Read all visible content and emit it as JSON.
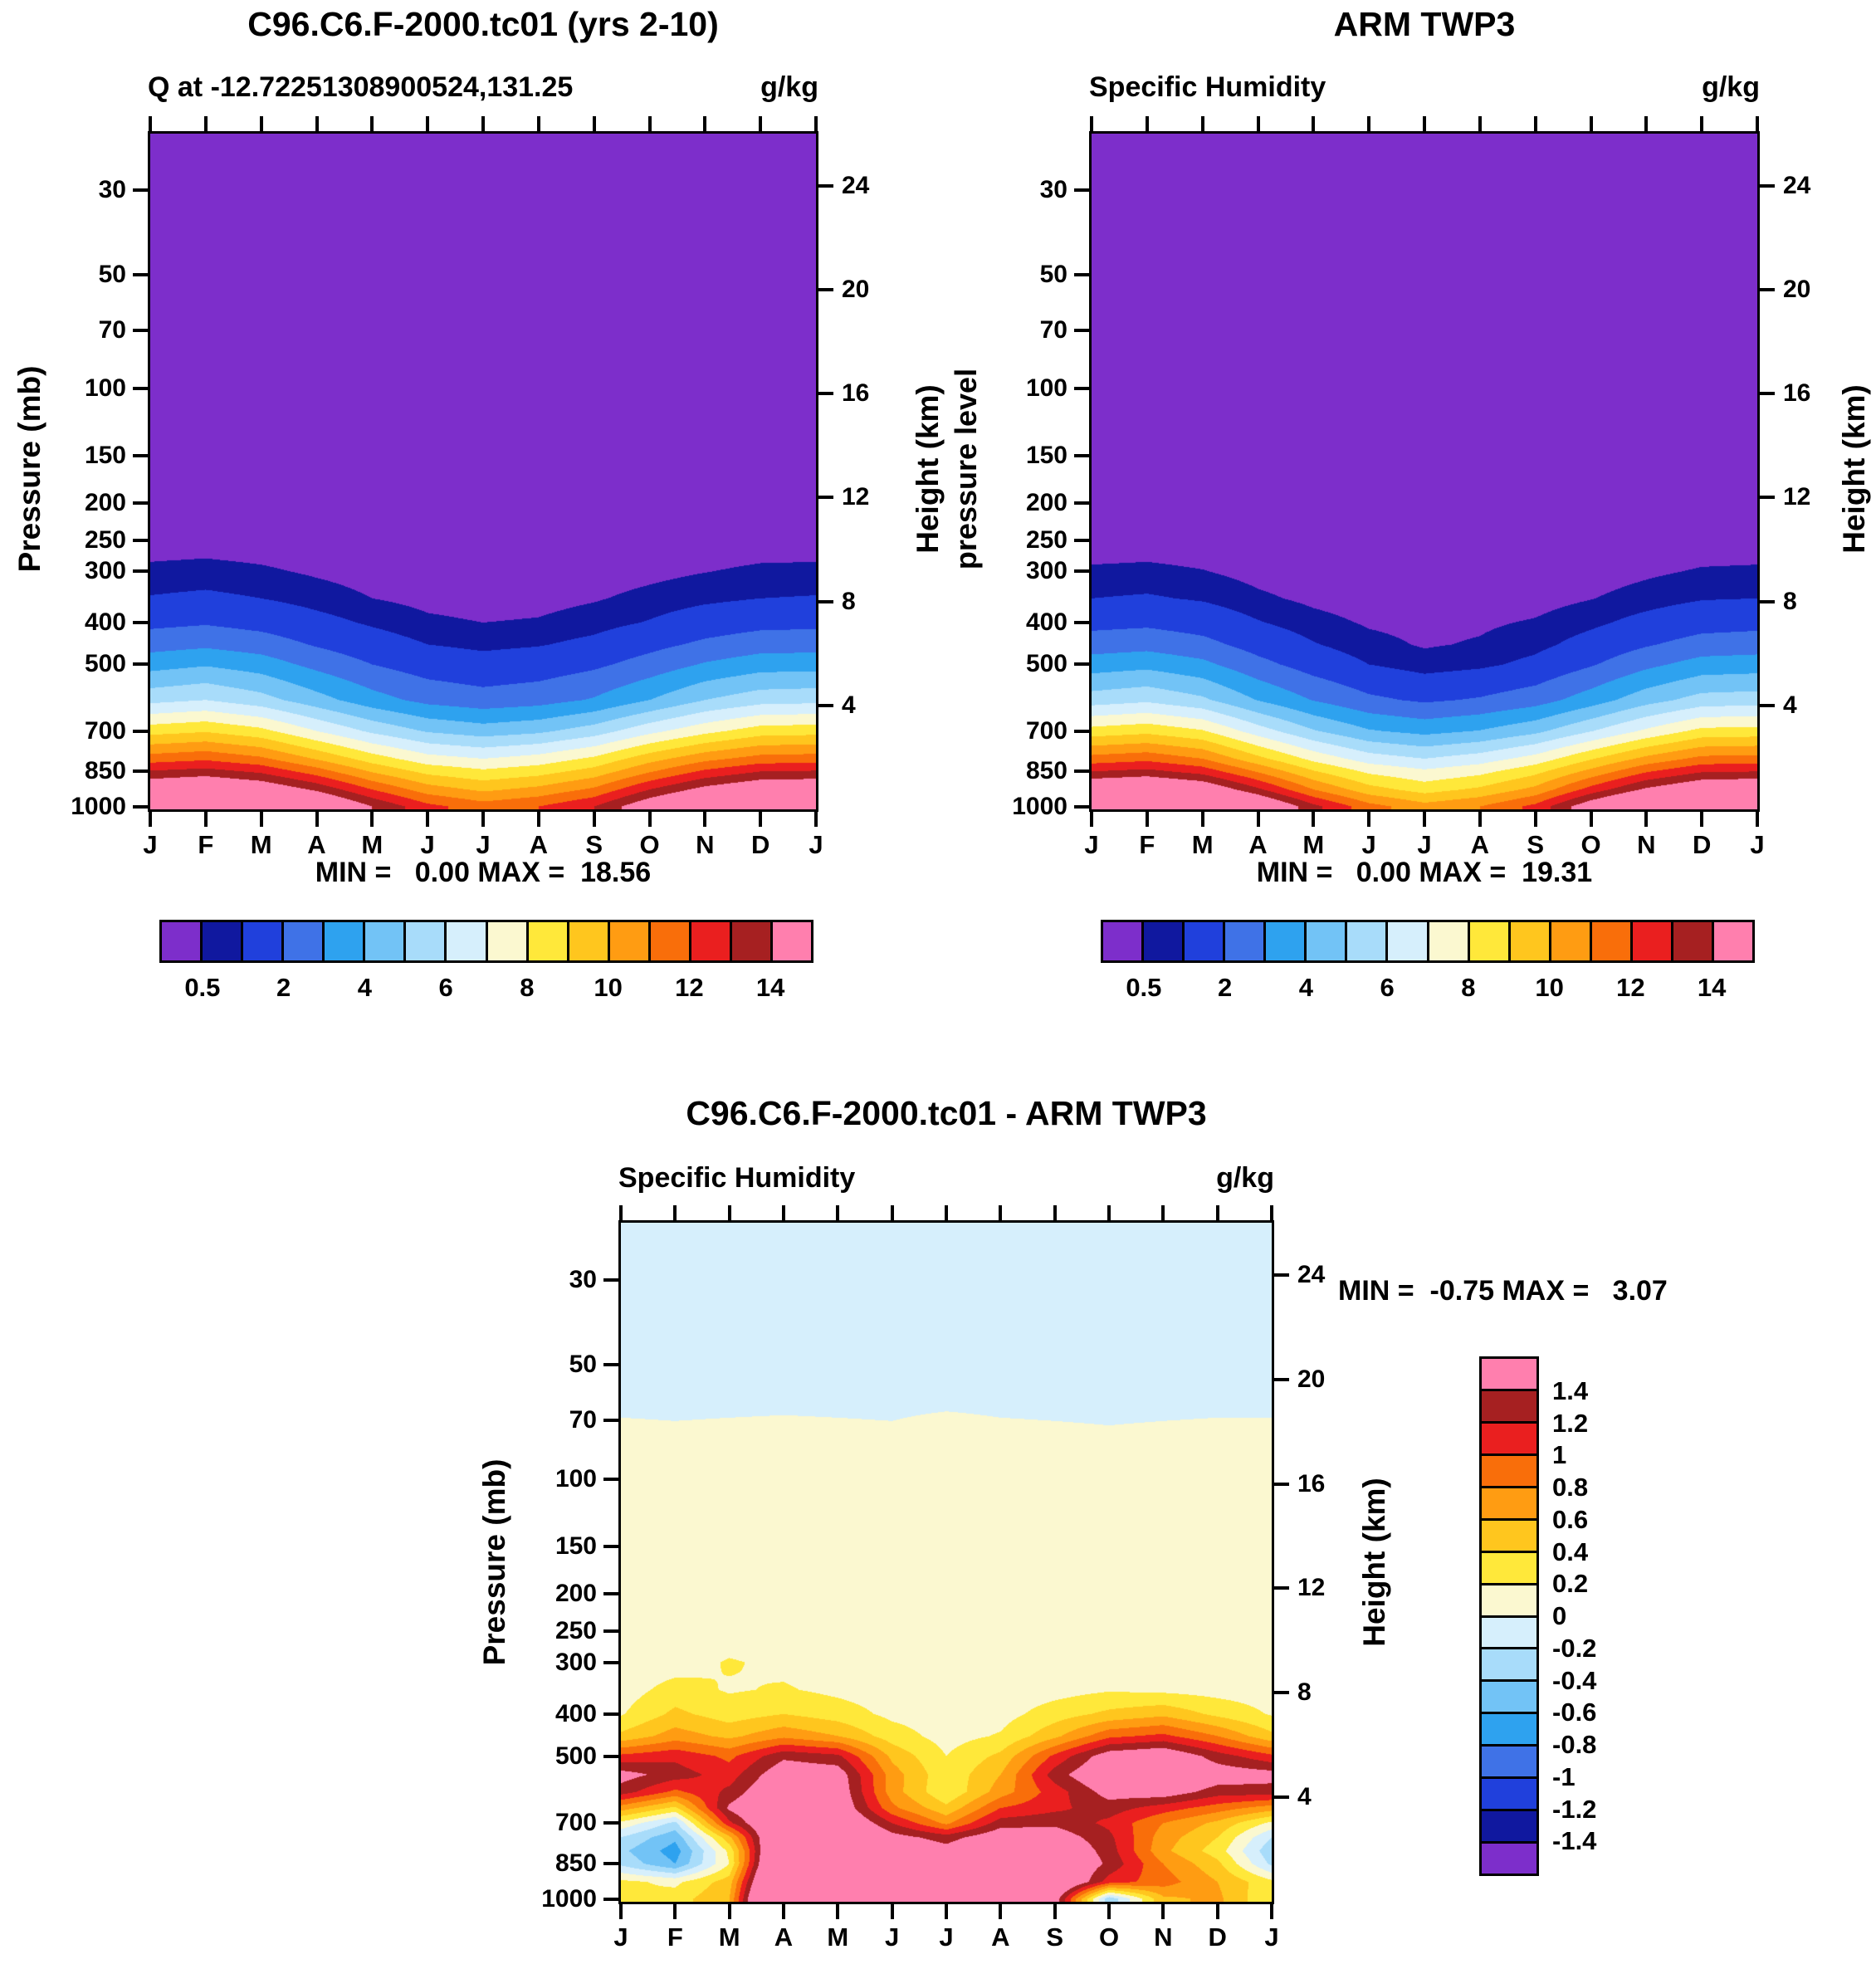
{
  "panels": {
    "model": {
      "title": "C96.C6.F-2000.tc01 (yrs 2-10)",
      "subtitle_left": "Q at -12.72251308900524,131.25",
      "units": "g/kg",
      "stats": "MIN =   0.00 MAX =  18.56"
    },
    "obs": {
      "title": "ARM TWP3",
      "subtitle_left": "Specific Humidity",
      "units": "g/kg",
      "stats": "MIN =   0.00 MAX =  19.31"
    },
    "diff": {
      "title": "C96.C6.F-2000.tc01 - ARM TWP3",
      "subtitle_left": "Specific Humidity",
      "units": "g/kg",
      "stats": "MIN =  -0.75 MAX =   3.07"
    }
  },
  "axes": {
    "pressure_label": "Pressure (mb)",
    "obs_left_label": "pressure level",
    "height_label": "Height (km)",
    "pressure_ticks": [
      30,
      50,
      70,
      100,
      150,
      200,
      250,
      300,
      400,
      500,
      700,
      850,
      1000
    ],
    "height_ticks": [
      24,
      20,
      16,
      12,
      8,
      4
    ],
    "month_labels": [
      "J",
      "F",
      "M",
      "A",
      "M",
      "J",
      "J",
      "A",
      "S",
      "O",
      "N",
      "D",
      "J"
    ]
  },
  "colorbars": {
    "palette": [
      "#7d2ecb",
      "#10189f",
      "#2040dc",
      "#3f72e7",
      "#2ea2ef",
      "#72c3f6",
      "#a8dcfa",
      "#d6effc",
      "#fbf8d0",
      "#ffe83a",
      "#ffc61e",
      "#ff9c12",
      "#f96e0a",
      "#ea1f1f",
      "#a62021",
      "#ff7fae"
    ],
    "humidity_labels": [
      "0.5",
      "2",
      "4",
      "6",
      "8",
      "10",
      "12",
      "14"
    ],
    "diff_labels": [
      "1.4",
      "1.2",
      "1",
      "0.8",
      "0.6",
      "0.4",
      "0.2",
      "0",
      "-0.2",
      "-0.4",
      "-0.6",
      "-0.8",
      "-1",
      "-1.2",
      "-1.4"
    ]
  },
  "chart_data": [
    {
      "type": "heatmap",
      "name": "model-specific-humidity",
      "title": "C96.C6.F-2000.tc01 (yrs 2-10)",
      "subtitle": "Q at -12.72251308900524,131.25",
      "units": "g/kg",
      "min": 0.0,
      "max": 18.56,
      "x_labels": [
        "J",
        "F",
        "M",
        "A",
        "M",
        "J",
        "J",
        "A",
        "S",
        "O",
        "N",
        "D",
        "J"
      ],
      "contour_levels": [
        0.5,
        1,
        2,
        3,
        4,
        5,
        6,
        7,
        8,
        9,
        10,
        11,
        12,
        13,
        14
      ],
      "pressure_levels_mb": [
        20,
        100,
        200,
        250,
        300,
        350,
        400,
        450,
        500,
        600,
        700,
        800,
        850,
        925,
        1000
      ],
      "values": [
        [
          0.005,
          0.005,
          0.005,
          0.005,
          0.005,
          0.005,
          0.005,
          0.005,
          0.005,
          0.005,
          0.005,
          0.005,
          0.005
        ],
        [
          0.005,
          0.005,
          0.005,
          0.005,
          0.005,
          0.005,
          0.005,
          0.005,
          0.005,
          0.005,
          0.005,
          0.005,
          0.005
        ],
        [
          0.06,
          0.06,
          0.05,
          0.04,
          0.03,
          0.02,
          0.02,
          0.02,
          0.03,
          0.04,
          0.05,
          0.06,
          0.06
        ],
        [
          0.22,
          0.24,
          0.2,
          0.14,
          0.09,
          0.06,
          0.05,
          0.06,
          0.08,
          0.12,
          0.17,
          0.21,
          0.22
        ],
        [
          0.62,
          0.68,
          0.58,
          0.42,
          0.28,
          0.18,
          0.15,
          0.17,
          0.24,
          0.35,
          0.48,
          0.6,
          0.62
        ],
        [
          1.05,
          1.15,
          1.0,
          0.75,
          0.5,
          0.35,
          0.28,
          0.32,
          0.45,
          0.65,
          0.85,
          1.0,
          1.05
        ],
        [
          1.75,
          1.9,
          1.65,
          1.25,
          0.9,
          0.6,
          0.5,
          0.55,
          0.75,
          1.05,
          1.45,
          1.7,
          1.75
        ],
        [
          2.6,
          2.8,
          2.5,
          1.9,
          1.4,
          1.0,
          0.85,
          0.95,
          1.2,
          1.7,
          2.2,
          2.55,
          2.6
        ],
        [
          3.6,
          3.9,
          3.5,
          2.7,
          2.0,
          1.5,
          1.3,
          1.45,
          1.8,
          2.4,
          3.1,
          3.55,
          3.6
        ],
        [
          5.7,
          6.0,
          5.4,
          4.4,
          3.4,
          2.7,
          2.4,
          2.6,
          3.1,
          4.0,
          5.0,
          5.6,
          5.7
        ],
        [
          8.6,
          8.9,
          8.3,
          7.0,
          5.8,
          4.9,
          4.5,
          4.8,
          5.5,
          6.7,
          7.7,
          8.5,
          8.6
        ],
        [
          11.5,
          11.8,
          11.2,
          9.9,
          8.5,
          7.4,
          7.0,
          7.4,
          8.2,
          9.6,
          10.7,
          11.4,
          11.5
        ],
        [
          13.1,
          13.4,
          12.8,
          11.5,
          9.9,
          8.7,
          8.2,
          8.6,
          9.4,
          10.9,
          12.2,
          13.0,
          13.1
        ],
        [
          15.3,
          15.7,
          15.1,
          13.8,
          12.0,
          10.5,
          9.8,
          10.3,
          11.2,
          13.0,
          14.4,
          15.2,
          15.3
        ],
        [
          17.5,
          18.2,
          17.6,
          16.1,
          14.0,
          12.3,
          11.5,
          12.0,
          13.0,
          15.0,
          16.6,
          17.4,
          17.5
        ]
      ]
    },
    {
      "type": "heatmap",
      "name": "arm-twp3-specific-humidity",
      "title": "ARM TWP3",
      "subtitle": "Specific Humidity",
      "units": "g/kg",
      "min": 0.0,
      "max": 19.31,
      "x_labels": [
        "J",
        "F",
        "M",
        "A",
        "M",
        "J",
        "J",
        "A",
        "S",
        "O",
        "N",
        "D",
        "J"
      ],
      "contour_levels": [
        0.5,
        1,
        2,
        3,
        4,
        5,
        6,
        7,
        8,
        9,
        10,
        11,
        12,
        13,
        14
      ],
      "pressure_levels_mb": [
        20,
        100,
        200,
        250,
        300,
        350,
        400,
        450,
        500,
        600,
        700,
        800,
        850,
        925,
        1000
      ],
      "values": [
        [
          0.005,
          0.005,
          0.005,
          0.005,
          0.005,
          0.005,
          0.005,
          0.005,
          0.005,
          0.005,
          0.005,
          0.005,
          0.005
        ],
        [
          0.005,
          0.005,
          0.005,
          0.005,
          0.005,
          0.005,
          0.005,
          0.005,
          0.005,
          0.005,
          0.005,
          0.005,
          0.005
        ],
        [
          0.05,
          0.05,
          0.04,
          0.03,
          0.02,
          0.02,
          0.01,
          0.02,
          0.02,
          0.03,
          0.04,
          0.05,
          0.05
        ],
        [
          0.2,
          0.22,
          0.18,
          0.1,
          0.06,
          0.04,
          0.03,
          0.04,
          0.05,
          0.08,
          0.13,
          0.19,
          0.2
        ],
        [
          0.58,
          0.62,
          0.52,
          0.32,
          0.18,
          0.11,
          0.09,
          0.1,
          0.14,
          0.24,
          0.4,
          0.55,
          0.58
        ],
        [
          1.0,
          1.08,
          0.92,
          0.6,
          0.38,
          0.24,
          0.19,
          0.22,
          0.3,
          0.48,
          0.72,
          0.95,
          1.0
        ],
        [
          1.7,
          1.8,
          1.55,
          1.05,
          0.68,
          0.44,
          0.36,
          0.42,
          0.55,
          0.85,
          1.25,
          1.6,
          1.7
        ],
        [
          2.5,
          2.65,
          2.3,
          1.6,
          1.05,
          0.65,
          0.45,
          0.55,
          0.8,
          1.3,
          1.9,
          2.4,
          2.5
        ],
        [
          3.5,
          3.7,
          3.25,
          2.3,
          1.55,
          1.0,
          0.7,
          0.85,
          1.2,
          1.9,
          2.75,
          3.4,
          3.5
        ],
        [
          5.5,
          5.8,
          5.2,
          3.95,
          2.95,
          2.2,
          1.85,
          2.1,
          2.55,
          3.5,
          4.6,
          5.4,
          5.5
        ],
        [
          8.4,
          8.7,
          8.1,
          6.5,
          5.1,
          4.1,
          3.7,
          4.05,
          4.75,
          5.95,
          7.2,
          8.3,
          8.4
        ],
        [
          11.4,
          11.7,
          11.0,
          9.3,
          7.7,
          6.5,
          6.0,
          6.5,
          7.4,
          8.9,
          10.3,
          11.3,
          11.4
        ],
        [
          13.0,
          13.3,
          12.6,
          10.9,
          9.1,
          7.8,
          7.2,
          7.7,
          8.7,
          10.3,
          11.9,
          12.9,
          13.0
        ],
        [
          15.5,
          15.9,
          15.2,
          13.2,
          11.0,
          9.4,
          8.6,
          9.2,
          10.3,
          12.4,
          14.2,
          15.3,
          15.5
        ],
        [
          18.3,
          18.9,
          18.2,
          15.9,
          13.3,
          11.4,
          10.4,
          11.0,
          12.3,
          14.9,
          17.0,
          18.1,
          18.3
        ]
      ]
    },
    {
      "type": "heatmap",
      "name": "difference-model-minus-arm-twp3",
      "title": "C96.C6.F-2000.tc01 - ARM TWP3",
      "subtitle": "Specific Humidity",
      "units": "g/kg",
      "min": -0.75,
      "max": 3.07,
      "x_labels": [
        "J",
        "F",
        "M",
        "A",
        "M",
        "J",
        "J",
        "A",
        "S",
        "O",
        "N",
        "D",
        "J"
      ],
      "contour_levels": [
        -1.4,
        -1.2,
        -1.0,
        -0.8,
        -0.6,
        -0.4,
        -0.2,
        0,
        0.2,
        0.4,
        0.6,
        0.8,
        1.0,
        1.2,
        1.4
      ],
      "pressure_levels_mb": [
        20,
        60,
        75,
        100,
        150,
        200,
        250,
        300,
        350,
        400,
        450,
        500,
        550,
        600,
        650,
        700,
        750,
        800,
        850,
        925,
        1000
      ],
      "values": [
        [
          -0.05,
          -0.05,
          -0.05,
          -0.05,
          -0.05,
          -0.05,
          -0.05,
          -0.05,
          -0.05,
          -0.05,
          -0.05,
          -0.05,
          -0.05
        ],
        [
          -0.05,
          -0.05,
          -0.05,
          -0.05,
          -0.05,
          -0.05,
          -0.05,
          -0.05,
          -0.05,
          -0.05,
          -0.05,
          -0.05,
          -0.05
        ],
        [
          0.03,
          0.02,
          0.03,
          0.04,
          0.03,
          0.02,
          0.06,
          0.03,
          0.02,
          0.01,
          0.02,
          0.03,
          0.03
        ],
        [
          0.05,
          0.05,
          0.05,
          0.05,
          0.05,
          0.05,
          0.05,
          0.05,
          0.05,
          0.05,
          0.05,
          0.05,
          0.05
        ],
        [
          0.06,
          0.06,
          0.06,
          0.06,
          0.06,
          0.06,
          0.06,
          0.06,
          0.06,
          0.06,
          0.06,
          0.06,
          0.06
        ],
        [
          0.07,
          0.07,
          0.07,
          0.07,
          0.07,
          0.07,
          0.07,
          0.07,
          0.07,
          0.07,
          0.07,
          0.07,
          0.07
        ],
        [
          0.08,
          0.08,
          0.08,
          0.08,
          0.08,
          0.08,
          0.08,
          0.08,
          0.08,
          0.08,
          0.08,
          0.08,
          0.08
        ],
        [
          0.08,
          0.1,
          0.22,
          0.15,
          0.1,
          0.08,
          0.06,
          0.06,
          0.08,
          0.1,
          0.1,
          0.08,
          0.08
        ],
        [
          0.1,
          0.28,
          0.18,
          0.22,
          0.15,
          0.1,
          0.08,
          0.08,
          0.12,
          0.18,
          0.15,
          0.12,
          0.1
        ],
        [
          0.18,
          0.45,
          0.3,
          0.4,
          0.3,
          0.15,
          0.1,
          0.12,
          0.3,
          0.45,
          0.55,
          0.35,
          0.18
        ],
        [
          0.45,
          0.7,
          0.55,
          0.75,
          0.6,
          0.3,
          0.12,
          0.22,
          0.55,
          0.95,
          1.05,
          0.8,
          0.45
        ],
        [
          1.05,
          1.15,
          0.95,
          1.35,
          1.25,
          0.55,
          0.2,
          0.45,
          1.05,
          1.55,
          1.65,
          1.3,
          1.05
        ],
        [
          1.5,
          1.3,
          1.1,
          1.6,
          1.55,
          0.7,
          0.25,
          0.6,
          1.3,
          1.7,
          1.75,
          1.55,
          1.5
        ],
        [
          1.3,
          0.95,
          1.25,
          1.75,
          1.6,
          0.7,
          0.22,
          0.7,
          1.1,
          1.5,
          1.55,
          1.3,
          1.3
        ],
        [
          0.7,
          0.35,
          1.45,
          1.85,
          1.65,
          0.85,
          0.45,
          1.0,
          1.15,
          1.3,
          1.1,
          0.9,
          0.7
        ],
        [
          0.15,
          -0.25,
          1.15,
          1.95,
          1.8,
          1.2,
          0.75,
          1.3,
          1.35,
          1.15,
          0.8,
          0.55,
          0.15
        ],
        [
          -0.2,
          -0.55,
          0.55,
          2.1,
          1.95,
          1.5,
          1.3,
          1.6,
          1.55,
          1.25,
          0.7,
          0.4,
          -0.2
        ],
        [
          -0.35,
          -0.7,
          0.25,
          2.25,
          2.05,
          1.7,
          1.5,
          1.8,
          1.7,
          1.3,
          0.65,
          0.3,
          -0.35
        ],
        [
          -0.25,
          -0.6,
          0.2,
          2.4,
          2.2,
          1.85,
          1.6,
          1.95,
          1.8,
          1.35,
          0.8,
          0.45,
          -0.25
        ],
        [
          0.25,
          0.15,
          0.5,
          2.6,
          2.4,
          2.05,
          1.75,
          2.1,
          1.9,
          1.1,
          0.9,
          0.6,
          0.25
        ],
        [
          0.2,
          0.3,
          0.6,
          2.95,
          2.6,
          2.25,
          1.85,
          2.2,
          1.55,
          -0.35,
          0.55,
          0.65,
          0.2
        ]
      ]
    }
  ]
}
